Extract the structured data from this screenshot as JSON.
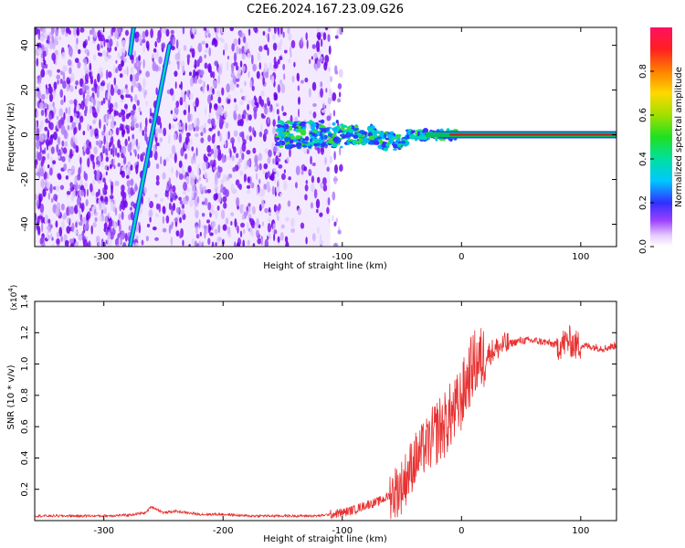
{
  "title": "C2E6.2024.167.23.09.G26",
  "colors": {
    "snr_line": "#e83030",
    "snr_baseline": "#e83030",
    "spec_bg_speckle": "#6a00e8",
    "spec_ridge_core": "#c81818",
    "spec_ridge_edge": "#00c060"
  },
  "chart_data": [
    {
      "type": "heatmap",
      "name": "spectrogram",
      "xlabel": "Height of straight line (km)",
      "ylabel": "Frequency (Hz)",
      "xlim": [
        -358,
        130
      ],
      "ylim": [
        -50,
        48
      ],
      "xticks": [
        -300,
        -200,
        -100,
        0,
        100
      ],
      "xtick_labels": [
        "-300",
        "-200",
        "-100",
        "0",
        "100"
      ],
      "yticks": [
        -40,
        -20,
        0,
        20,
        40
      ],
      "ytick_labels": [
        "-40",
        "-20",
        "0",
        "20",
        "40"
      ],
      "colorbar": {
        "label": "Normalized spectral amplitude",
        "range": [
          0,
          1
        ],
        "ticks": [
          0.0,
          0.2,
          0.4,
          0.6,
          0.8
        ],
        "tick_labels": [
          "0.0",
          "0.2",
          "0.4",
          "0.6",
          "0.8"
        ]
      },
      "features": [
        {
          "kind": "diagonal_line",
          "x_start": -278,
          "y_start": -50,
          "x_end": -245,
          "y_end": 40,
          "level": 0.4
        },
        {
          "kind": "diagonal_line",
          "x_start": -278,
          "y_start": 36,
          "x_end": -275,
          "y_end": 48,
          "level": 0.4
        },
        {
          "kind": "horizontal_ridge",
          "x_start": -155,
          "x_end": 130,
          "y": 0,
          "level": 0.85
        }
      ]
    },
    {
      "type": "line",
      "name": "snr",
      "xlabel": "Height of straight line (km)",
      "ylabel": "SNR (10 * v/v)",
      "y_scale_label": "(x10",
      "y_scale_exp": "4",
      "y_scale_close": ")",
      "xlim": [
        -358,
        130
      ],
      "ylim": [
        0,
        1.4
      ],
      "xticks": [
        -300,
        -200,
        -100,
        0,
        100
      ],
      "xtick_labels": [
        "-300",
        "-200",
        "-100",
        "0",
        "100"
      ],
      "yticks": [
        0.2,
        0.4,
        0.6,
        0.8,
        1.0,
        1.2,
        1.4
      ],
      "ytick_labels": [
        "0.2",
        "0.4",
        "0.6",
        "0.8",
        "1.0",
        "1.2",
        "1.4"
      ],
      "series": [
        {
          "name": "SNR",
          "x": [
            -358,
            -340,
            -320,
            -300,
            -280,
            -265,
            -260,
            -250,
            -240,
            -230,
            -220,
            -200,
            -180,
            -160,
            -140,
            -120,
            -110,
            -100,
            -90,
            -80,
            -70,
            -60,
            -50,
            -45,
            -40,
            -35,
            -30,
            -25,
            -20,
            -15,
            -10,
            -5,
            0,
            5,
            10,
            15,
            20,
            25,
            30,
            35,
            40,
            50,
            60,
            70,
            80,
            85,
            90,
            95,
            100,
            110,
            120,
            130
          ],
          "y": [
            0.03,
            0.03,
            0.03,
            0.03,
            0.035,
            0.05,
            0.09,
            0.05,
            0.06,
            0.05,
            0.04,
            0.04,
            0.03,
            0.03,
            0.03,
            0.03,
            0.04,
            0.05,
            0.07,
            0.1,
            0.12,
            0.16,
            0.22,
            0.3,
            0.38,
            0.42,
            0.48,
            0.5,
            0.58,
            0.6,
            0.66,
            0.7,
            0.78,
            0.9,
            1.0,
            1.02,
            1.05,
            1.08,
            1.1,
            1.12,
            1.13,
            1.15,
            1.15,
            1.14,
            1.12,
            1.13,
            1.15,
            1.12,
            1.12,
            1.11,
            1.1,
            1.12
          ]
        }
      ]
    }
  ]
}
